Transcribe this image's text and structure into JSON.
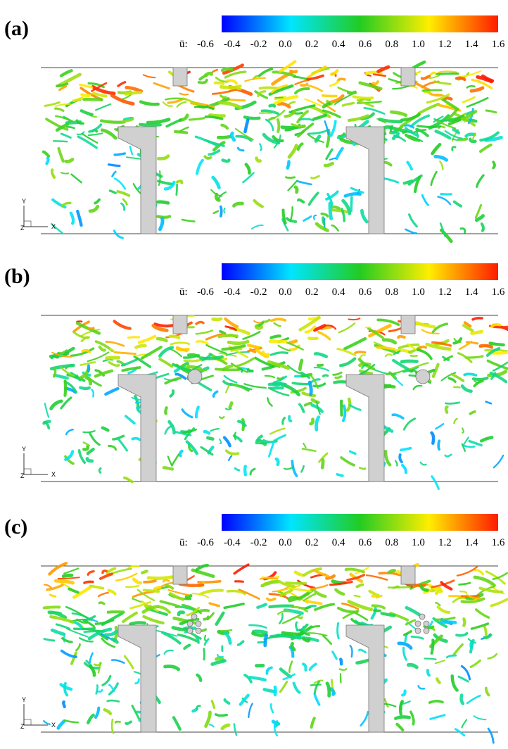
{
  "panels": [
    {
      "label": "(a)",
      "colorbar": {
        "symbol": "ū:",
        "lim": [
          -0.6,
          1.6
        ],
        "ticks": [
          -0.6,
          -0.4,
          -0.2,
          {
            "value": 0,
            "label": "0.0"
          },
          0.2,
          0.4,
          0.6,
          0.8,
          {
            "value": 1,
            "label": "1.0"
          },
          1.2,
          1.4,
          1.6
        ]
      },
      "axes": {
        "y": "Y",
        "x": "X",
        "z": "Z"
      }
    },
    {
      "label": "(b)",
      "colorbar": {
        "symbol": "ū:",
        "lim": [
          -0.6,
          1.6
        ],
        "ticks": [
          -0.6,
          -0.4,
          -0.2,
          {
            "value": 0,
            "label": "0.0"
          },
          0.2,
          0.4,
          0.6,
          0.8,
          {
            "value": 1,
            "label": "1.0"
          },
          1.2,
          1.4,
          1.6
        ]
      },
      "axes": {
        "y": "Y",
        "x": "X",
        "z": "Z"
      }
    },
    {
      "label": "(c)",
      "colorbar": {
        "symbol": "ū:",
        "lim": [
          -0.6,
          1.6
        ],
        "ticks": [
          -0.6,
          -0.4,
          -0.2,
          {
            "value": 0,
            "label": "0.0"
          },
          0.2,
          0.4,
          0.6,
          0.8,
          {
            "value": 1,
            "label": "1.0"
          },
          1.2,
          1.4,
          1.6
        ]
      },
      "axes": {
        "y": "Y",
        "x": "X",
        "z": "Z"
      }
    }
  ]
}
